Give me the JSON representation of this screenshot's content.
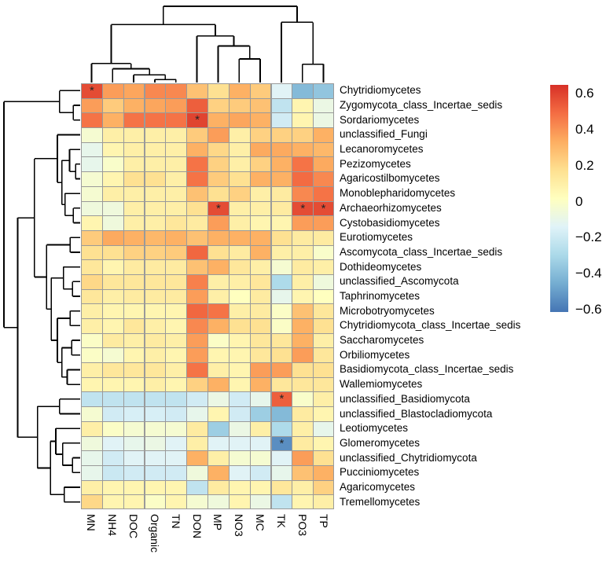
{
  "figure": {
    "background": "#ffffff",
    "text_color": "#000000",
    "grid_line_color": "#9a9a9a",
    "dendrogram_color": "#000000",
    "star_color": "#262626"
  },
  "chart_data": {
    "type": "heatmap",
    "title": "",
    "xlabel": "",
    "ylabel": "",
    "legend_position": "right",
    "x_tick_rotation_deg": 90,
    "columns": [
      "MN",
      "NH4",
      "DOC",
      "Organic",
      "TN",
      "DON",
      "MP",
      "NO3",
      "MC",
      "TK",
      "PO3",
      "TP"
    ],
    "rows": [
      "Chytridiomycetes",
      "Zygomycota_class_Incertae_sedis",
      "Sordariomycetes",
      "unclassified_Fungi",
      "Lecanoromycetes",
      "Pezizomycetes",
      "Agaricostilbomycetes",
      "Monoblepharidomycetes",
      "Archaeorhizomycetes",
      "Cystobasidiomycetes",
      "Eurotiomycetes",
      "Ascomycota_class_Incertae_sedis",
      "Dothideomycetes",
      "unclassified_Ascomycota",
      "Taphrinomycetes",
      "Microbotryomycetes",
      "Chytridiomycota_class_Incertae_sedis",
      "Saccharomycetes",
      "Orbiliomycetes",
      "Basidiomycota_class_Incertae_sedis",
      "Wallemiomycetes",
      "unclassified_Basidiomycota",
      "unclassified_Blastocladiomycota",
      "Leotiomycetes",
      "Glomeromycetes",
      "unclassified_Chytridiomycota",
      "Pucciniomycetes",
      "Agaricomycetes",
      "Tremellomycetes"
    ],
    "values": [
      [
        0.55,
        0.35,
        0.33,
        0.4,
        0.4,
        0.25,
        0.15,
        0.3,
        0.22,
        -0.15,
        -0.42,
        -0.38
      ],
      [
        0.35,
        0.22,
        0.3,
        0.33,
        0.35,
        0.5,
        0.2,
        0.22,
        0.25,
        -0.25,
        0.05,
        -0.1
      ],
      [
        0.45,
        0.3,
        0.45,
        0.45,
        0.45,
        0.57,
        0.3,
        0.33,
        0.3,
        -0.2,
        0.05,
        -0.1
      ],
      [
        -0.05,
        0.08,
        0.08,
        0.08,
        0.08,
        0.22,
        0.35,
        0.08,
        0.2,
        0.2,
        0.2,
        0.3
      ],
      [
        -0.12,
        0.05,
        0.08,
        0.08,
        0.08,
        0.3,
        0.18,
        0.08,
        0.32,
        0.32,
        0.3,
        0.28
      ],
      [
        -0.12,
        -0.03,
        0.08,
        0.08,
        0.08,
        0.45,
        0.2,
        0.08,
        0.2,
        0.3,
        0.45,
        0.32
      ],
      [
        -0.05,
        0.05,
        0.15,
        0.15,
        0.08,
        0.45,
        0.22,
        0.15,
        0.3,
        0.3,
        0.47,
        0.4
      ],
      [
        -0.05,
        0.08,
        0.08,
        0.08,
        0.08,
        0.25,
        0.15,
        0.2,
        0.08,
        0.1,
        0.4,
        0.45
      ],
      [
        -0.08,
        -0.08,
        0.08,
        0.08,
        0.08,
        0.15,
        0.55,
        0.08,
        0.08,
        0.1,
        0.55,
        0.55
      ],
      [
        0.05,
        -0.08,
        0.08,
        0.08,
        0.12,
        0.1,
        0.35,
        0.08,
        0.05,
        0.05,
        0.35,
        0.35
      ],
      [
        0.22,
        0.32,
        0.3,
        0.28,
        0.3,
        0.25,
        0.3,
        0.3,
        0.3,
        0.15,
        0.1,
        0.1
      ],
      [
        0.15,
        0.15,
        0.2,
        0.2,
        0.22,
        0.48,
        0.15,
        0.1,
        0.3,
        0.08,
        0.08,
        -0.03
      ],
      [
        0.12,
        0.05,
        0.1,
        0.1,
        0.1,
        0.25,
        0.3,
        0.12,
        0.08,
        -0.05,
        0.1,
        0.08
      ],
      [
        0.18,
        0.12,
        0.12,
        0.12,
        0.12,
        0.42,
        0.08,
        0.08,
        0.12,
        -0.3,
        0.08,
        -0.08
      ],
      [
        0.12,
        0.08,
        0.1,
        0.1,
        0.1,
        0.35,
        0.08,
        0.0,
        0.1,
        -0.12,
        0.05,
        0.0
      ],
      [
        0.08,
        0.05,
        0.05,
        0.05,
        0.05,
        0.48,
        0.45,
        0.08,
        0.1,
        -0.02,
        0.25,
        0.12
      ],
      [
        0.08,
        0.05,
        0.12,
        0.08,
        0.05,
        0.4,
        0.3,
        0.15,
        0.15,
        -0.02,
        0.3,
        0.15
      ],
      [
        -0.02,
        0.1,
        0.08,
        0.1,
        0.08,
        0.35,
        -0.02,
        0.05,
        0.12,
        0.12,
        0.3,
        0.08
      ],
      [
        -0.02,
        -0.05,
        0.05,
        0.08,
        0.05,
        0.35,
        0.05,
        0.05,
        0.12,
        0.15,
        0.35,
        0.12
      ],
      [
        0.08,
        0.12,
        0.12,
        0.12,
        0.08,
        0.45,
        0.08,
        0.05,
        0.35,
        0.35,
        0.15,
        0.15
      ],
      [
        0.05,
        0.05,
        0.05,
        0.08,
        0.05,
        0.2,
        0.3,
        0.05,
        0.3,
        0.12,
        0.12,
        0.12
      ],
      [
        -0.25,
        -0.25,
        -0.25,
        -0.25,
        -0.25,
        -0.2,
        -0.1,
        -0.2,
        -0.12,
        0.5,
        -0.03,
        0.08
      ],
      [
        -0.05,
        -0.2,
        -0.18,
        -0.18,
        -0.2,
        -0.12,
        0.05,
        -0.2,
        -0.35,
        -0.42,
        0.1,
        0.05
      ],
      [
        0.08,
        -0.02,
        -0.05,
        -0.05,
        -0.05,
        0.1,
        -0.35,
        -0.1,
        0.08,
        -0.3,
        0.08,
        -0.12
      ],
      [
        -0.08,
        -0.15,
        -0.12,
        -0.1,
        -0.15,
        0.08,
        -0.15,
        -0.15,
        -0.15,
        -0.55,
        0.1,
        0.05
      ],
      [
        -0.12,
        -0.2,
        -0.15,
        -0.15,
        -0.15,
        0.3,
        0.08,
        -0.05,
        -0.05,
        -0.15,
        0.35,
        0.15
      ],
      [
        -0.12,
        -0.22,
        -0.2,
        -0.2,
        -0.2,
        -0.08,
        0.3,
        -0.15,
        -0.2,
        -0.12,
        0.25,
        0.3
      ],
      [
        0.08,
        0.05,
        0.05,
        0.05,
        0.05,
        -0.25,
        0.1,
        0.05,
        0.05,
        0.12,
        0.08,
        0.2
      ],
      [
        0.18,
        0.05,
        0.05,
        -0.02,
        0.05,
        -0.05,
        -0.08,
        0.05,
        -0.1,
        -0.25,
        0.05,
        0.08
      ]
    ],
    "significance_stars": [
      [
        0,
        0
      ],
      [
        2,
        5
      ],
      [
        8,
        6
      ],
      [
        8,
        10
      ],
      [
        8,
        11
      ],
      [
        21,
        9
      ],
      [
        24,
        9
      ]
    ],
    "star_symbol": "*",
    "colorscale": {
      "name": "RdYlBu (red = positive)",
      "stops_blue_to_red": [
        "#4575B4",
        "#74ADD1",
        "#ABD9E9",
        "#E0F3F8",
        "#FFFFBF",
        "#FEE090",
        "#FDAE61",
        "#F46D43",
        "#D73027"
      ],
      "domain": [
        -0.62,
        0.62
      ]
    },
    "colorbar": {
      "tick_labels": [
        "0.6",
        "0.4",
        "0.2",
        "0",
        "−0.2",
        "−0.4",
        "−0.6"
      ],
      "tick_values": [
        0.6,
        0.4,
        0.2,
        0,
        -0.2,
        -0.4,
        -0.6
      ]
    },
    "col_dendrogram": {
      "h": 1.0,
      "c": [
        {
          "h": 0.76,
          "c": [
            {
              "h": 0.25,
              "c": [
                0,
                {
                  "h": 0.18,
                  "c": [
                    1,
                    {
                      "h": 0.1,
                      "c": [
                        2,
                        {
                          "h": 0.04,
                          "c": [
                            3,
                            4
                          ]
                        }
                      ]
                    }
                  ]
                }
              ]
            },
            {
              "h": 0.61,
              "c": [
                5,
                {
                  "h": 0.48,
                  "c": [
                    6,
                    {
                      "h": 0.31,
                      "c": [
                        7,
                        8
                      ]
                    }
                  ]
                }
              ]
            }
          ]
        },
        {
          "h": 0.79,
          "c": [
            9,
            {
              "h": 0.24,
              "c": [
                10,
                11
              ]
            }
          ]
        }
      ]
    },
    "row_dendrogram": {
      "h": 1.0,
      "c": [
        {
          "h": 0.27,
          "c": [
            0,
            {
              "h": 0.09,
              "c": [
                1,
                2
              ]
            }
          ]
        },
        {
          "h": 0.82,
          "c": [
            {
              "h": 0.6,
              "c": [
                {
                  "h": 0.3,
                  "c": [
                    3,
                    {
                      "h": 0.24,
                      "c": [
                        {
                          "h": 0.14,
                          "c": [
                            4,
                            {
                              "h": 0.06,
                              "c": [
                                5,
                                6
                              ]
                            }
                          ]
                        },
                        {
                          "h": 0.2,
                          "c": [
                            7,
                            {
                              "h": 0.09,
                              "c": [
                                8,
                                9
                              ]
                            }
                          ]
                        }
                      ]
                    }
                  ]
                },
                {
                  "h": 0.44,
                  "c": [
                    {
                      "h": 0.13,
                      "c": [
                        10,
                        11
                      ]
                    },
                    {
                      "h": 0.38,
                      "c": [
                        {
                          "h": 0.22,
                          "c": [
                            12,
                            {
                              "h": 0.1,
                              "c": [
                                13,
                                14
                              ]
                            }
                          ]
                        },
                        {
                          "h": 0.3,
                          "c": [
                            {
                              "h": 0.13,
                              "c": [
                                15,
                                16
                              ]
                            },
                            {
                              "h": 0.24,
                              "c": [
                                {
                                  "h": 0.11,
                                  "c": [
                                    17,
                                    18
                                  ]
                                },
                                {
                                  "h": 0.17,
                                  "c": [
                                    19,
                                    20
                                  ]
                                }
                              ]
                            }
                          ]
                        }
                      ]
                    }
                  ]
                }
              ]
            },
            {
              "h": 0.56,
              "c": [
                {
                  "h": 0.27,
                  "c": [
                    21,
                    22
                  ]
                },
                {
                  "h": 0.39,
                  "c": [
                    {
                      "h": 0.32,
                      "c": [
                        23,
                        {
                          "h": 0.23,
                          "c": [
                            24,
                            {
                              "h": 0.1,
                              "c": [
                                25,
                                26
                              ]
                            }
                          ]
                        }
                      ]
                    },
                    {
                      "h": 0.21,
                      "c": [
                        27,
                        28
                      ]
                    }
                  ]
                }
              ]
            }
          ]
        }
      ]
    }
  }
}
